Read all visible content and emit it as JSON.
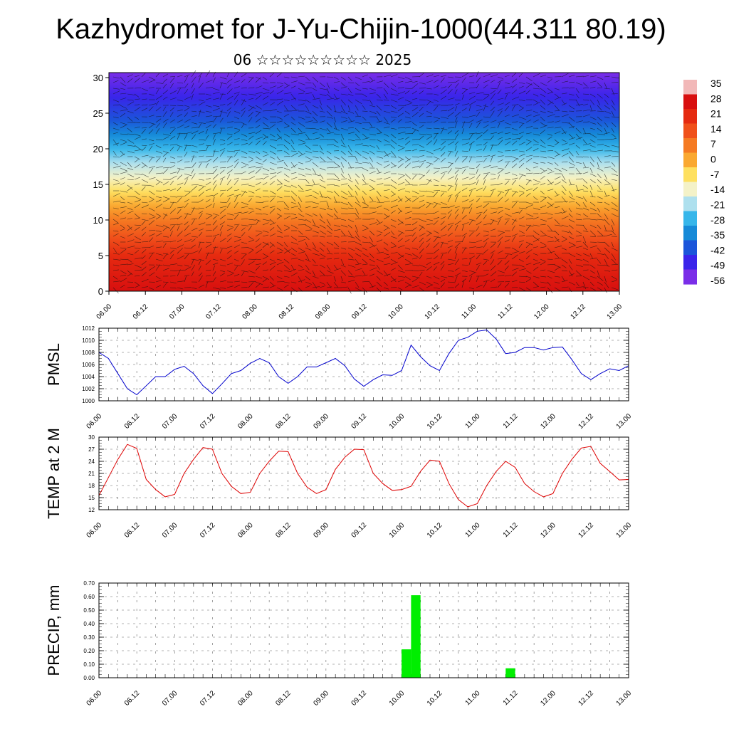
{
  "title": "Kazhydromet for J-Yu-Chijin-1000(44.311 80.19)",
  "subtitle": "06 ☆☆☆☆☆☆☆☆☆ 2025",
  "colors": {
    "pmsl_line": "#0000cc",
    "temp_line": "#dd0000",
    "precip_bar": "#00ee00",
    "grid": "#555555"
  },
  "chart_data": [
    {
      "type": "heatmap",
      "title": "",
      "xlabel": "",
      "ylabel": "",
      "x_tick_labels": [
        "06.00",
        "06.12",
        "07.00",
        "07.12",
        "08.00",
        "08.12",
        "09.00",
        "09.12",
        "10.00",
        "10.12",
        "11.00",
        "11.12",
        "12.00",
        "12.12",
        "13.00"
      ],
      "y_ticks": [
        0,
        5,
        10,
        15,
        20,
        25,
        30
      ],
      "ylim": [
        0,
        30.7
      ],
      "overlay": "wind barbs",
      "colorbar": {
        "labels": [
          "35",
          "28",
          "21",
          "14",
          "7",
          "0",
          "-7",
          "-14",
          "-21",
          "-28",
          "-35",
          "-42",
          "-49",
          "-56"
        ],
        "colors": [
          "#f2b8b8",
          "#d80f0f",
          "#e52a10",
          "#f0501a",
          "#f57a22",
          "#faa830",
          "#fee060",
          "#f4f2c8",
          "#aee0ee",
          "#36b6ea",
          "#168ad8",
          "#1b55da",
          "#3a24ea",
          "#7a2ee8"
        ]
      },
      "temperature_profile_by_height": [
        {
          "height": 0,
          "value": 28
        },
        {
          "height": 5,
          "value": 21
        },
        {
          "height": 10,
          "value": 7
        },
        {
          "height": 14,
          "value": -7
        },
        {
          "height": 16,
          "value": -14
        },
        {
          "height": 20,
          "value": -28
        },
        {
          "height": 24,
          "value": -42
        },
        {
          "height": 30.7,
          "value": -56
        }
      ]
    },
    {
      "type": "line",
      "ylabel": "PMSL",
      "x_tick_labels": [
        "06.00",
        "06.12",
        "07.00",
        "07.12",
        "08.00",
        "08.12",
        "09.00",
        "09.12",
        "10.00",
        "10.12",
        "11.00",
        "11.12",
        "12.00",
        "12.12",
        "13.00"
      ],
      "y_tick_labels": [
        "1000",
        "1002",
        "1004",
        "1006",
        "1008",
        "1010",
        "1012"
      ],
      "ylim": [
        1000,
        1012
      ],
      "grid": true,
      "series": [
        {
          "x_hours": [
            0,
            3,
            6,
            9,
            12,
            15,
            18,
            21,
            24,
            27,
            30,
            33,
            36,
            39,
            42,
            45,
            48,
            51,
            54,
            57,
            60,
            63,
            66,
            69,
            72,
            75,
            78,
            81,
            84,
            87,
            90,
            93,
            96,
            99,
            102,
            105,
            108,
            111,
            114,
            117,
            120,
            123,
            126,
            129,
            132,
            135,
            138,
            141,
            144,
            147,
            150,
            153,
            156,
            159,
            162,
            165,
            168
          ],
          "values": [
            1008,
            1007,
            1004.5,
            1002,
            1001,
            1002.5,
            1004,
            1004,
            1005.2,
            1005.7,
            1004.5,
            1002.5,
            1001.2,
            1002.8,
            1004.5,
            1005,
            1006.2,
            1007,
            1006.3,
            1004,
            1002.9,
            1004,
            1005.6,
            1005.6,
            1006.3,
            1007,
            1005.8,
            1003.6,
            1002.4,
            1003.5,
            1004.3,
            1004.2,
            1005,
            1009.2,
            1007.3,
            1005.8,
            1005,
            1007.8,
            1010,
            1010.5,
            1011.5,
            1011.7,
            1010.2,
            1007.8,
            1008,
            1008.8,
            1008.8,
            1008.4,
            1008.8,
            1008.9,
            1006.8,
            1004.5,
            1003.5,
            1004.5,
            1005.3,
            1005,
            1005.8
          ]
        }
      ]
    },
    {
      "type": "line",
      "ylabel": "TEMP at 2 M",
      "x_tick_labels": [
        "06.00",
        "06.12",
        "07.00",
        "07.12",
        "08.00",
        "08.12",
        "09.00",
        "09.12",
        "10.00",
        "10.12",
        "11.00",
        "11.12",
        "12.00",
        "12.12",
        "13.00"
      ],
      "y_tick_labels": [
        "12",
        "15",
        "18",
        "21",
        "24",
        "27",
        "30"
      ],
      "ylim": [
        12,
        30
      ],
      "grid": true,
      "series": [
        {
          "x_hours": [
            0,
            3,
            6,
            9,
            12,
            15,
            18,
            21,
            24,
            27,
            30,
            33,
            36,
            39,
            42,
            45,
            48,
            51,
            54,
            57,
            60,
            63,
            66,
            69,
            72,
            75,
            78,
            81,
            84,
            87,
            90,
            93,
            96,
            99,
            102,
            105,
            108,
            111,
            114,
            117,
            120,
            123,
            126,
            129,
            132,
            135,
            138,
            141,
            144,
            147,
            150,
            153,
            156,
            159,
            162,
            165,
            168
          ],
          "values": [
            15.5,
            20,
            24.5,
            28.2,
            27.2,
            19.5,
            17,
            15.2,
            15.8,
            21,
            24.5,
            27.4,
            27,
            21,
            17.8,
            16,
            16.3,
            21,
            24,
            26.5,
            26.4,
            21,
            17.6,
            16,
            17,
            22,
            25,
            27,
            26.9,
            21,
            18.5,
            16.8,
            17,
            17.8,
            21.5,
            24.3,
            24,
            18.5,
            14.5,
            12.7,
            13.5,
            18,
            21.5,
            24,
            22.5,
            18.5,
            16.5,
            15.2,
            16,
            21,
            24.5,
            27.3,
            27.7,
            23.5,
            21.5,
            19.4,
            19.5
          ]
        }
      ]
    },
    {
      "type": "bar",
      "ylabel": "PRECIP, mm",
      "x_tick_labels": [
        "06.00",
        "06.12",
        "07.00",
        "07.12",
        "08.00",
        "08.12",
        "09.00",
        "09.12",
        "10.00",
        "10.12",
        "11.00",
        "11.12",
        "12.00",
        "12.12",
        "13.00"
      ],
      "y_tick_labels": [
        "0.00",
        "0.10",
        "0.20",
        "0.30",
        "0.40",
        "0.50",
        "0.60",
        "0.70"
      ],
      "ylim": [
        0,
        0.7
      ],
      "grid": true,
      "bars": [
        {
          "x_hours": 97.5,
          "value": 0.21
        },
        {
          "x_hours": 100.5,
          "value": 0.61
        },
        {
          "x_hours": 130.5,
          "value": 0.07
        }
      ]
    }
  ]
}
